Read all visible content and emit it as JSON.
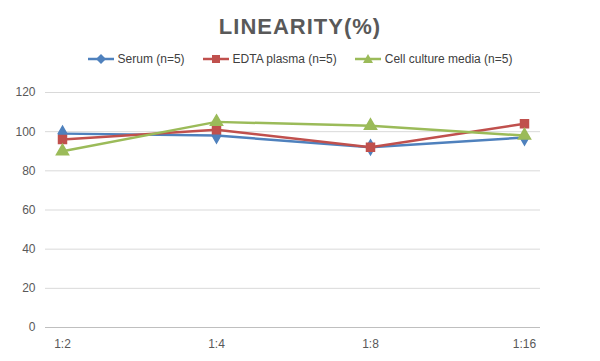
{
  "chart_data": {
    "type": "line",
    "title": "LINEARITY(%)",
    "categories": [
      "1:2",
      "1:4",
      "1:8",
      "1:16"
    ],
    "series": [
      {
        "name": "Serum (n=5)",
        "color": "#4f81bd",
        "marker": "diamond",
        "values": [
          99,
          98,
          92,
          97
        ]
      },
      {
        "name": "EDTA plasma (n=5)",
        "color": "#c0504d",
        "marker": "square",
        "values": [
          96,
          101,
          92,
          104
        ]
      },
      {
        "name": "Cell culture media (n=5)",
        "color": "#9bbb59",
        "marker": "triangle",
        "values": [
          90,
          105,
          103,
          98
        ]
      }
    ],
    "ylim": [
      0,
      120
    ],
    "yticks": [
      0,
      20,
      40,
      60,
      80,
      100,
      120
    ],
    "grid": true,
    "legend": "top"
  }
}
